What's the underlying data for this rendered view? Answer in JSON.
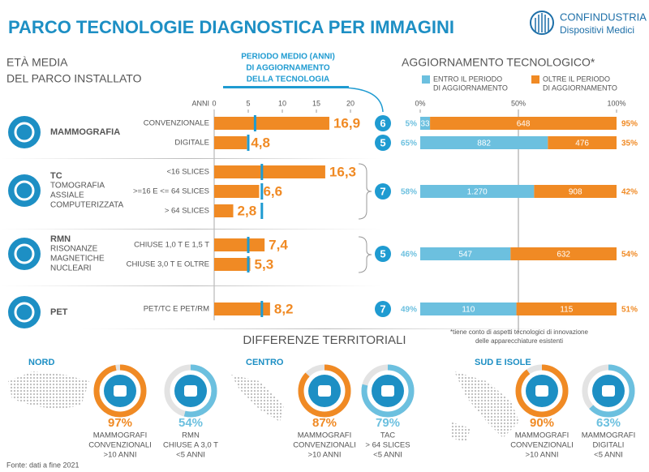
{
  "header": {
    "title": "PARCO TECNOLOGIE DIAGNOSTICA PER IMMAGINI",
    "brand": "CONFINDUSTRIA",
    "brand_sub": "Dispositivi Medici"
  },
  "chart_data": [
    {
      "type": "bar",
      "title": [
        "ETÀ MEDIA",
        "DEL PARCO INSTALLATO"
      ],
      "axis_label": "ANNI",
      "period_title": [
        "PERIODO MEDIO (ANNI)",
        "DI AGGIORNAMENTO",
        "DELLA TECNOLOGIA"
      ],
      "xlim": [
        0,
        20
      ],
      "xticks": [
        0,
        5,
        10,
        15,
        20
      ],
      "color": "#f08a24",
      "period_color": "#1f9bd1",
      "groups": [
        {
          "name": [
            "MAMMOGRAFIA"
          ],
          "categories": [
            "CONVENZIONALE",
            "DIGITALE"
          ],
          "values": [
            16.9,
            4.8
          ],
          "value_labels": [
            "16,9",
            "4,8"
          ],
          "periods": [
            6,
            5
          ]
        },
        {
          "name": [
            "TC",
            "TOMOGRAFIA",
            "ASSIALE",
            "COMPUTERIZZATA"
          ],
          "categories": [
            "<16 SLICES",
            ">=16 E <= 64 SLICES",
            "> 64 SLICES"
          ],
          "values": [
            16.3,
            6.6,
            2.8
          ],
          "value_labels": [
            "16,3",
            "6,6",
            "2,8"
          ],
          "periods": [
            7
          ]
        },
        {
          "name": [
            "RMN",
            "RISONANZE",
            "MAGNETICHE",
            "NUCLEARI"
          ],
          "categories": [
            "CHIUSE 1,0 T E 1,5 T",
            "CHIUSE 3,0 T E OLTRE"
          ],
          "values": [
            7.4,
            5.3
          ],
          "value_labels": [
            "7,4",
            "5,3"
          ],
          "periods": [
            5
          ]
        },
        {
          "name": [
            "PET"
          ],
          "categories": [
            "PET/TC E PET/RM"
          ],
          "values": [
            8.2
          ],
          "value_labels": [
            "8,2"
          ],
          "periods": [
            7
          ]
        }
      ]
    },
    {
      "type": "stacked-bar",
      "title": "AGGIORNAMENTO TECNOLOGICO*",
      "xlim": [
        0,
        100
      ],
      "xticks": [
        {
          "value": 0,
          "label": "0%"
        },
        {
          "value": 50,
          "label": "50%"
        },
        {
          "value": 100,
          "label": "100%"
        }
      ],
      "note": [
        "*tiene conto di aspetti tecnologici di innovazione",
        "delle apparecchiature esistenti"
      ],
      "series": [
        {
          "name": [
            "ENTRO IL PERIODO",
            "DI AGGIORNAMENTO"
          ],
          "color": "#6cc0df",
          "values": [
            5,
            65,
            58,
            46,
            49
          ],
          "value_labels": [
            "5%",
            "65%",
            "58%",
            "46%",
            "49%"
          ],
          "counts": [
            33,
            882,
            1270,
            547,
            110
          ],
          "count_labels": [
            "33",
            "882",
            "1.270",
            "547",
            "110"
          ]
        },
        {
          "name": [
            "OLTRE IL PERIODO",
            "DI AGGIORNAMENTO"
          ],
          "color": "#f08a24",
          "values": [
            95,
            35,
            42,
            54,
            51
          ],
          "value_labels": [
            "95%",
            "35%",
            "42%",
            "54%",
            "51%"
          ],
          "counts": [
            648,
            476,
            908,
            632,
            115
          ],
          "count_labels": [
            "648",
            "476",
            "908",
            "632",
            "115"
          ]
        }
      ]
    }
  ],
  "territorial": {
    "title": "DIFFERENZE TERRITORIALI",
    "regions": [
      {
        "name": "NORD",
        "items": [
          {
            "value": 97,
            "value_label": "97%",
            "color": "#f08a24",
            "lines": [
              "MAMMOGRAFI",
              "CONVENZIONALI",
              ">10 ANNI"
            ]
          },
          {
            "value": 54,
            "value_label": "54%",
            "color": "#6cc0df",
            "lines": [
              "RMN",
              "CHIUSE A 3,0 T",
              "<5 ANNI"
            ]
          }
        ]
      },
      {
        "name": "CENTRO",
        "items": [
          {
            "value": 87,
            "value_label": "87%",
            "color": "#f08a24",
            "lines": [
              "MAMMOGRAFI",
              "CONVENZIONALI",
              ">10 ANNI"
            ]
          },
          {
            "value": 79,
            "value_label": "79%",
            "color": "#6cc0df",
            "lines": [
              "TAC",
              "> 64 SLICES",
              "<5 ANNI"
            ]
          }
        ]
      },
      {
        "name": "SUD E ISOLE",
        "items": [
          {
            "value": 90,
            "value_label": "90%",
            "color": "#f08a24",
            "lines": [
              "MAMMOGRAFI",
              "CONVENZIONALI",
              ">10 ANNI"
            ]
          },
          {
            "value": 63,
            "value_label": "63%",
            "color": "#6cc0df",
            "lines": [
              "MAMMOGRAFI",
              "DIGITALI",
              "<5 ANNI"
            ]
          }
        ]
      }
    ]
  },
  "source": "Fonte: dati a fine 2021"
}
